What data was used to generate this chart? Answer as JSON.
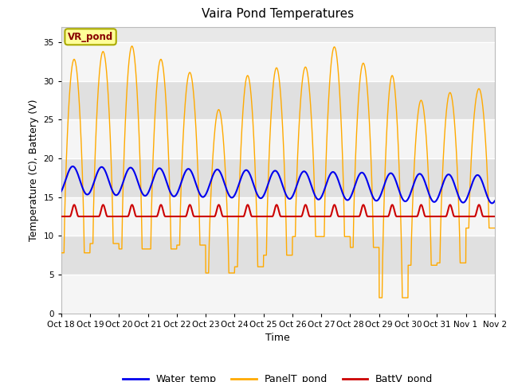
{
  "title": "Vaira Pond Temperatures",
  "xlabel": "Time",
  "ylabel": "Temperature (C), Battery (V)",
  "ylim": [
    0,
    37
  ],
  "yticks": [
    0,
    5,
    10,
    15,
    20,
    25,
    30,
    35
  ],
  "fig_bg": "#ffffff",
  "plot_bg": "#e8e8e8",
  "water_temp_color": "#0000ee",
  "panel_temp_color": "#ffaa00",
  "batt_color": "#cc0000",
  "annotation_text": "VR_pond",
  "annotation_bg": "#ffff99",
  "annotation_border": "#aaaa00",
  "annotation_text_color": "#880000",
  "legend_labels": [
    "Water_temp",
    "PanelT_pond",
    "BattV_pond"
  ],
  "x_tick_labels": [
    "Oct 18",
    "Oct 19",
    "Oct 20",
    "Oct 21",
    "Oct 22",
    "Oct 23",
    "Oct 24",
    "Oct 25",
    "Oct 26",
    "Oct 27",
    "Oct 28",
    "Oct 29",
    "Oct 30",
    "Oct 31",
    "Nov 1",
    "Nov 2"
  ],
  "num_days": 15,
  "points_per_day": 144,
  "panel_peaks": [
    32.8,
    33.8,
    34.5,
    32.8,
    31.1,
    26.3,
    30.7,
    31.7,
    31.8,
    34.4,
    32.3,
    30.7,
    27.5,
    28.5,
    29.0
  ],
  "panel_lows": [
    7.8,
    9.0,
    8.3,
    8.3,
    8.8,
    5.2,
    6.0,
    7.5,
    9.9,
    9.9,
    8.5,
    2.0,
    6.2,
    6.5,
    11.0
  ]
}
